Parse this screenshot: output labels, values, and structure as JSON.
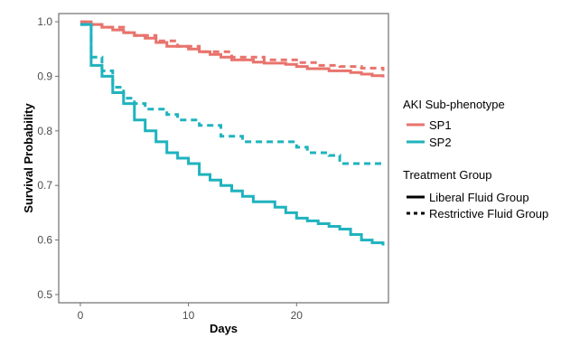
{
  "chart_data": {
    "type": "line",
    "xlabel": "Days",
    "ylabel": "Survival Probability",
    "xlim": [
      -2,
      28.5
    ],
    "ylim": [
      0.485,
      1.015
    ],
    "xticks": [
      0,
      10,
      20
    ],
    "yticks": [
      0.5,
      0.6,
      0.7,
      0.8,
      0.9,
      1.0
    ],
    "ytick_labels": [
      "0.5",
      "0.6",
      "0.7",
      "0.8",
      "0.9",
      "1.0"
    ],
    "grid": false,
    "legend_placement": "right",
    "colors": {
      "SP1": "#E8736C",
      "SP2": "#1FB3BE"
    },
    "legend": {
      "subphenotype": {
        "title": "AKI Sub-phenotype",
        "entries": [
          {
            "label": "SP1",
            "color": "#E8736C"
          },
          {
            "label": "SP2",
            "color": "#1FB3BE"
          }
        ]
      },
      "treatment": {
        "title": "Treatment Group",
        "entries": [
          {
            "label": "Liberal Fluid Group",
            "line_style": "solid"
          },
          {
            "label": "Restrictive Fluid Group",
            "line_style": "dashed"
          }
        ]
      }
    },
    "series": [
      {
        "subphenotype": "SP1",
        "group": "Liberal Fluid Group",
        "color": "#E8736C",
        "line_style": "solid",
        "x": [
          0,
          1,
          2,
          3,
          4,
          5,
          6,
          7,
          8,
          10,
          11,
          12,
          13,
          14,
          16,
          17,
          19,
          20,
          21,
          23,
          25,
          26,
          27,
          28
        ],
        "y": [
          1.0,
          0.995,
          0.99,
          0.985,
          0.98,
          0.975,
          0.97,
          0.962,
          0.955,
          0.95,
          0.945,
          0.94,
          0.935,
          0.93,
          0.926,
          0.924,
          0.922,
          0.918,
          0.914,
          0.91,
          0.907,
          0.904,
          0.901,
          0.898
        ]
      },
      {
        "subphenotype": "SP1",
        "group": "Restrictive Fluid Group",
        "color": "#E8736C",
        "line_style": "dashed",
        "x": [
          0,
          1,
          2,
          4,
          5,
          7,
          9,
          11,
          14,
          17,
          20,
          22,
          24,
          26,
          28
        ],
        "y": [
          1.0,
          0.995,
          0.99,
          0.98,
          0.975,
          0.965,
          0.955,
          0.945,
          0.935,
          0.93,
          0.925,
          0.92,
          0.918,
          0.915,
          0.91
        ]
      },
      {
        "subphenotype": "SP2",
        "group": "Liberal Fluid Group",
        "color": "#1FB3BE",
        "line_style": "solid",
        "x": [
          0,
          1,
          2,
          3,
          4,
          5,
          6,
          7,
          8,
          9,
          10,
          11,
          12,
          13,
          14,
          15,
          16,
          18,
          19,
          20,
          21,
          22,
          23,
          24,
          25,
          26,
          27,
          28
        ],
        "y": [
          0.995,
          0.92,
          0.9,
          0.87,
          0.85,
          0.82,
          0.8,
          0.78,
          0.76,
          0.75,
          0.74,
          0.72,
          0.71,
          0.7,
          0.69,
          0.68,
          0.67,
          0.66,
          0.65,
          0.64,
          0.635,
          0.63,
          0.625,
          0.62,
          0.61,
          0.6,
          0.595,
          0.59
        ]
      },
      {
        "subphenotype": "SP2",
        "group": "Restrictive Fluid Group",
        "color": "#1FB3BE",
        "line_style": "dashed",
        "x": [
          0,
          1,
          2,
          3,
          4,
          5,
          6,
          8,
          9,
          11,
          13,
          15,
          17,
          20,
          21,
          23,
          24,
          26,
          28
        ],
        "y": [
          0.995,
          0.935,
          0.91,
          0.88,
          0.86,
          0.85,
          0.84,
          0.83,
          0.82,
          0.81,
          0.79,
          0.78,
          0.78,
          0.77,
          0.76,
          0.755,
          0.74,
          0.74,
          0.738
        ]
      }
    ]
  }
}
